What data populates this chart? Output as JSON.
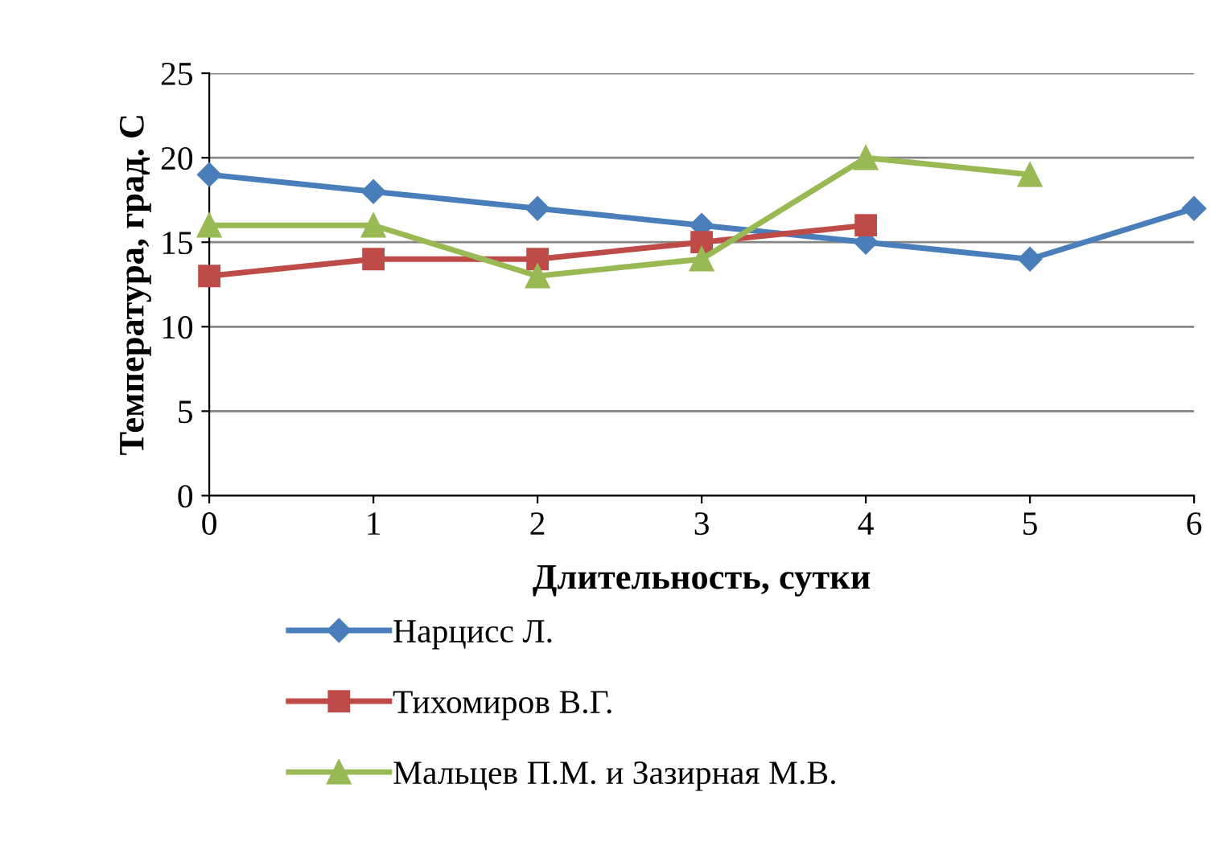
{
  "chart_data": {
    "type": "line",
    "xlabel": "Длительность, сутки",
    "ylabel": "Температура, град. С",
    "xlim": [
      0,
      6
    ],
    "xticks": [
      0,
      1,
      2,
      3,
      4,
      5,
      6
    ],
    "ylim": [
      0,
      25
    ],
    "yticks": [
      0,
      5,
      10,
      15,
      20,
      25
    ],
    "grid": "y",
    "legend": "bottom",
    "line_style": "solid",
    "series": [
      {
        "name": "Нарцисс Л.",
        "color": "#4a7ebb",
        "marker": "diamond",
        "x": [
          0,
          1,
          2,
          3,
          4,
          5,
          6
        ],
        "values": [
          19,
          18,
          17,
          16,
          15,
          14,
          17
        ]
      },
      {
        "name": "Тихомиров В.Г.",
        "color": "#be4b48",
        "marker": "square",
        "x": [
          0,
          1,
          2,
          3,
          4
        ],
        "values": [
          13,
          14,
          14,
          15,
          16
        ]
      },
      {
        "name": "Мальцев П.М. и Зазирная М.В.",
        "color": "#98b954",
        "marker": "triangle",
        "x": [
          0,
          1,
          2,
          3,
          4,
          5
        ],
        "values": [
          16,
          16,
          13,
          14,
          20,
          19
        ]
      }
    ]
  }
}
